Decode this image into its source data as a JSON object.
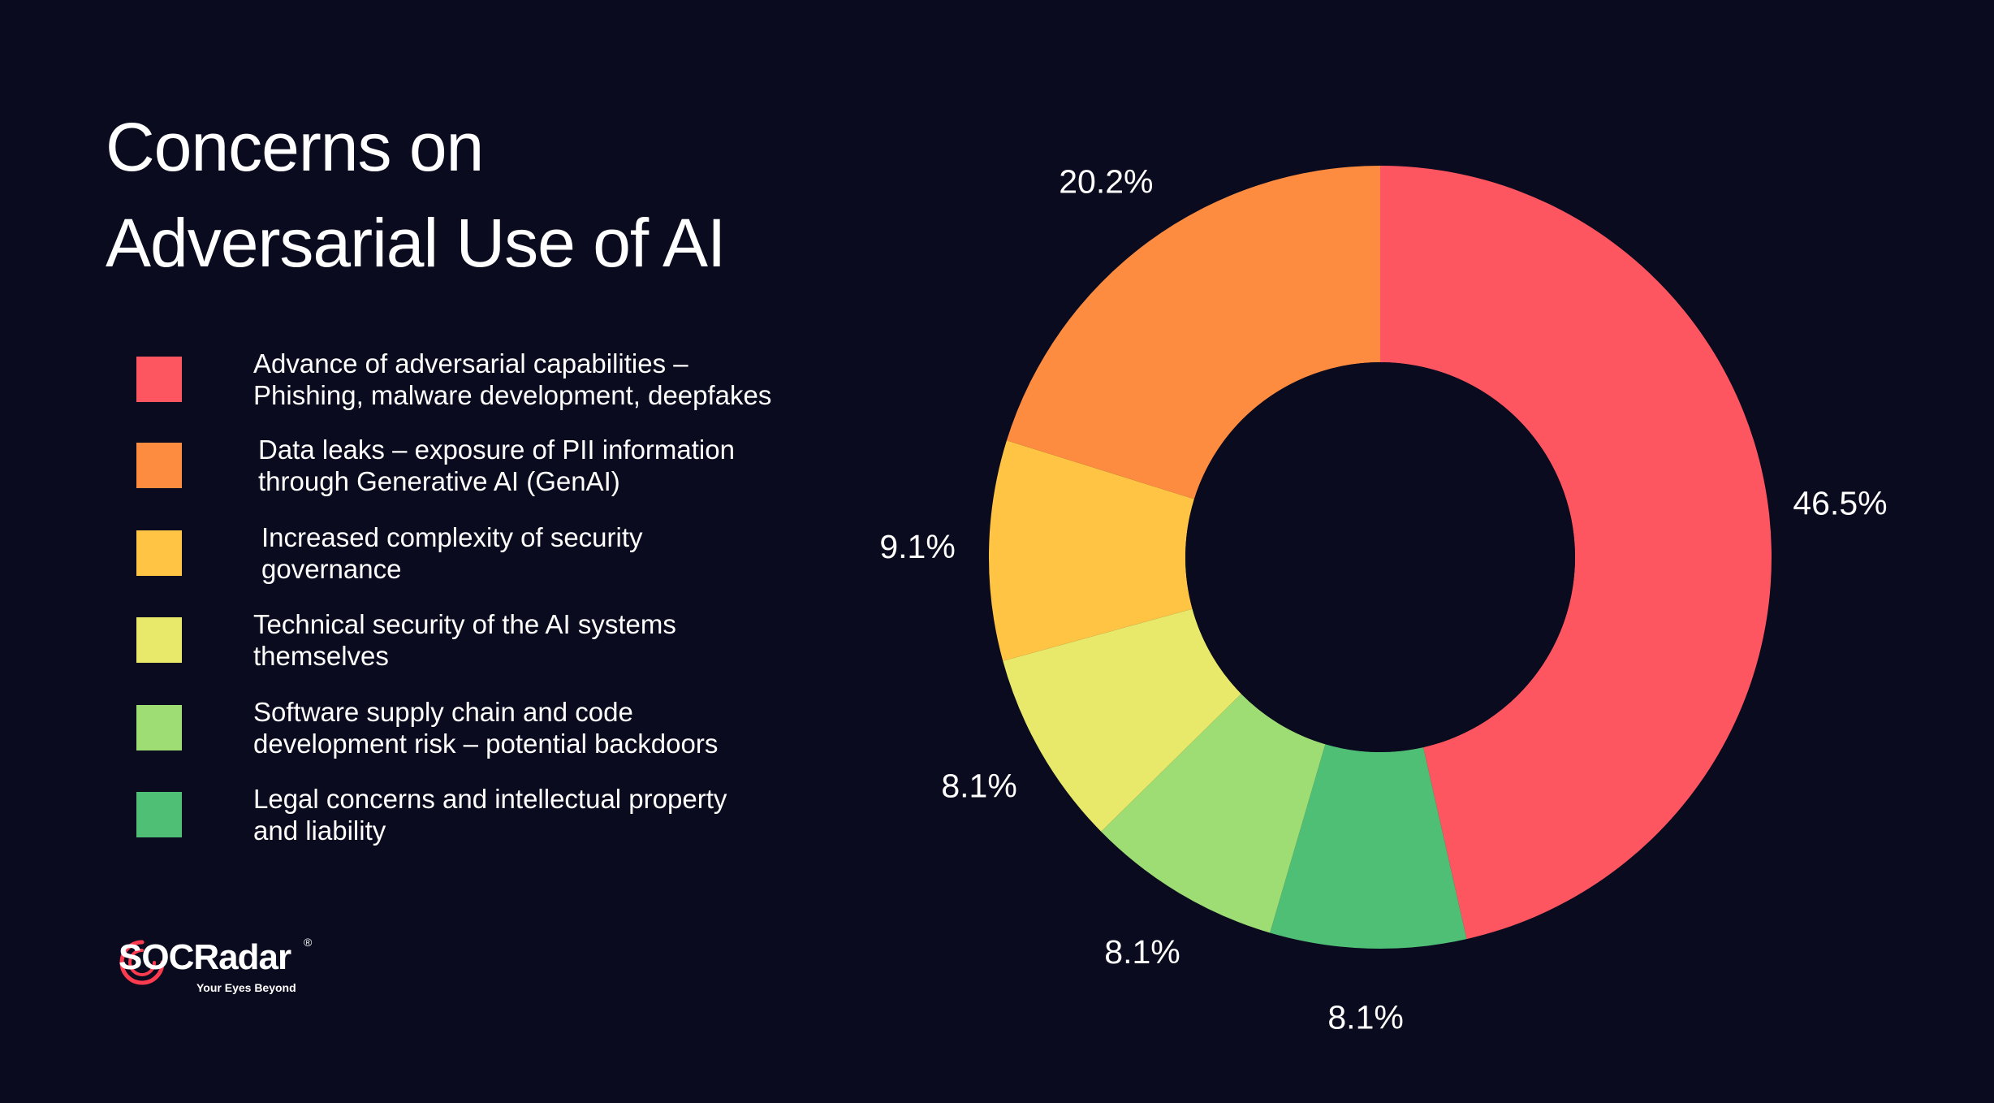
{
  "title_lines": [
    "Concerns on",
    "Adversarial Use of AI"
  ],
  "legend": [
    {
      "lines": [
        "Advance of adversarial capabilities –",
        "Phishing, malware development, deepfakes"
      ],
      "color": "#fd5660"
    },
    {
      "lines": [
        "Data leaks – exposure of PII information",
        "through Generative AI (GenAI)"
      ],
      "color": "#fe8c40"
    },
    {
      "lines": [
        "Increased complexity of security",
        "governance"
      ],
      "color": "#ffc443"
    },
    {
      "lines": [
        "Technical security of the AI systems",
        "themselves"
      ],
      "color": "#e8e86a"
    },
    {
      "lines": [
        "Software supply chain and code",
        "development risk – potential backdoors"
      ],
      "color": "#9ddd74"
    },
    {
      "lines": [
        "Legal concerns and intellectual property",
        "and liability"
      ],
      "color": "#4fbf76"
    }
  ],
  "chart_data": {
    "type": "pie",
    "title": "Concerns on Adversarial Use of AI",
    "donut": true,
    "categories": [
      "Advance of adversarial capabilities – Phishing, malware development, deepfakes",
      "Legal concerns and intellectual property and liability",
      "Software supply chain and code development risk – potential backdoors",
      "Technical security of the AI systems themselves",
      "Increased complexity of security governance",
      "Data leaks – exposure of PII information through Generative AI (GenAI)"
    ],
    "values": [
      46.5,
      8.1,
      8.1,
      8.1,
      9.1,
      20.2
    ],
    "labels": [
      "46.5%",
      "8.1%",
      "8.1%",
      "8.1%",
      "9.1%",
      "20.2%"
    ],
    "colors": [
      "#fd5660",
      "#4fbf76",
      "#9ddd74",
      "#e8e86a",
      "#ffc443",
      "#fe8c40"
    ],
    "legend_position": "left"
  },
  "logo": {
    "name": "SOCRadar",
    "reg": "®",
    "tagline": "Your Eyes Beyond"
  }
}
